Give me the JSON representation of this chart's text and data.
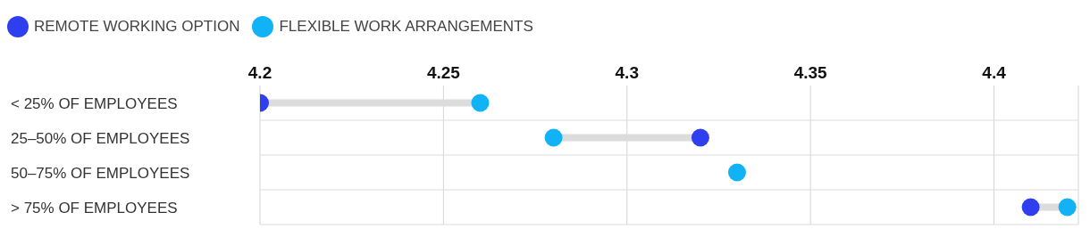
{
  "chart_data": {
    "type": "scatter",
    "orientation": "horizontal",
    "categories": [
      "< 25% OF EMPLOYEES",
      "25–50% OF EMPLOYEES",
      "50–75% OF EMPLOYEES",
      "> 75% OF EMPLOYEES"
    ],
    "series": [
      {
        "name": "REMOTE WORKING OPTION",
        "color": "#2f3ff0",
        "values": [
          4.2,
          4.32,
          null,
          4.41
        ]
      },
      {
        "name": "FLEXIBLE WORK ARRANGEMENTS",
        "color": "#12b2f6",
        "values": [
          4.26,
          4.28,
          4.33,
          4.42
        ]
      }
    ],
    "xlim": [
      4.2,
      4.423
    ],
    "xticks": [
      4.2,
      4.25,
      4.3,
      4.35,
      4.4
    ],
    "grid": true,
    "legend": "top left",
    "marker": "circle"
  }
}
